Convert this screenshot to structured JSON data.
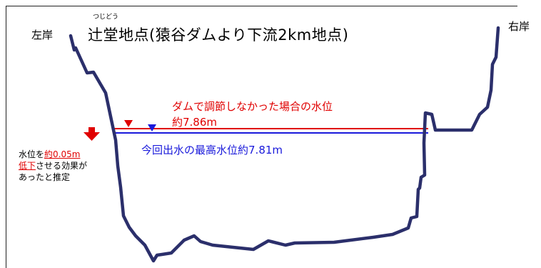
{
  "title": "辻堂地点(猿谷ダムより下流2km地点)",
  "title_ruby": "つじどう",
  "left_bank": "左岸",
  "right_bank": "右岸",
  "without_dam_label": "ダムで調節しなかった場合の水位",
  "without_dam_level": "約7.86m",
  "actual_level_label": "今回出水の最高水位約7.81m",
  "effect_note": {
    "line1_prefix": "水位を",
    "line1_highlight": "約0.05m",
    "line2_highlight": "低下",
    "line2_suffix": "させる効果が",
    "line3": "あったと推定"
  },
  "colors": {
    "without_dam": "#e00000",
    "actual": "#1a1adb",
    "riverbed": "#2b2f6b",
    "arrow": "#e00000"
  },
  "icons": [
    "down-arrow-icon",
    "red-level-marker-icon",
    "blue-level-marker-icon"
  ]
}
